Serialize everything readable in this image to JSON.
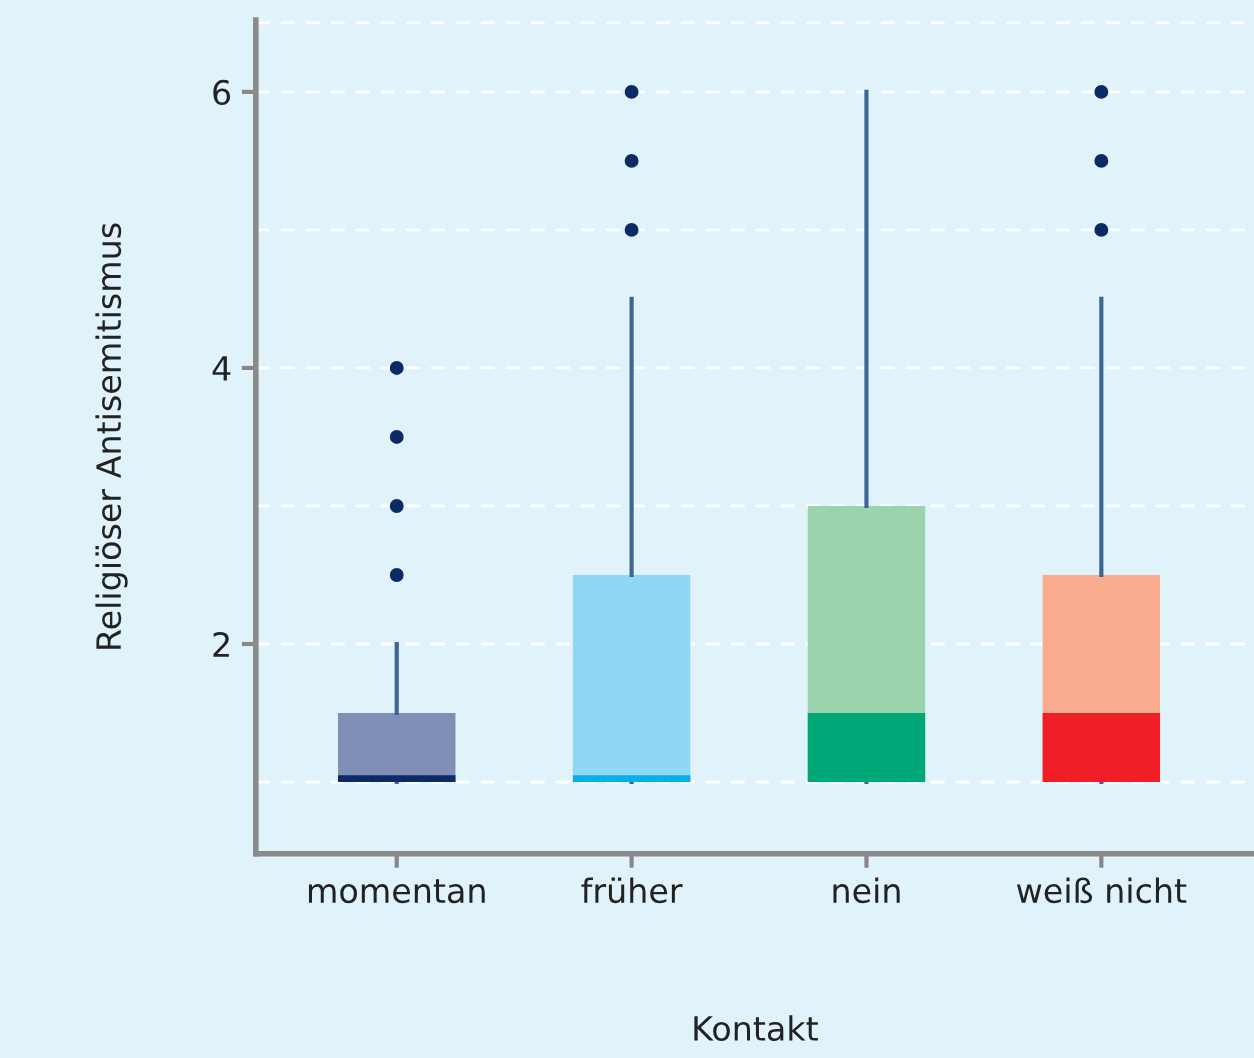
{
  "chart_data": {
    "type": "box",
    "xlabel": "Kontakt",
    "ylabel": "Religiöser Antisemitismus",
    "categories": [
      "momentan",
      "früher",
      "nein",
      "weiß nicht"
    ],
    "boxes": [
      {
        "low": 1,
        "q1": 1,
        "median": 1.05,
        "q3": 1.5,
        "high": 2,
        "outliers": [
          2.5,
          3,
          3.5,
          4
        ]
      },
      {
        "low": 1,
        "q1": 1,
        "median": 1.05,
        "q3": 2.5,
        "high": 4.5,
        "outliers": [
          5,
          5.5,
          6
        ]
      },
      {
        "low": 1,
        "q1": 1,
        "median": 1.5,
        "q3": 3,
        "high": 6
      },
      {
        "low": 1,
        "q1": 1,
        "median": 1.5,
        "q3": 2.5,
        "high": 4.5,
        "outliers": [
          5,
          5.5,
          6
        ]
      }
    ],
    "colors": [
      [
        "#7f8fb6",
        "#0b2a66"
      ],
      [
        "#8fd8f5",
        "#0aaee9"
      ],
      [
        "#9bd3ad",
        "#00a878"
      ],
      [
        "#f8ab8e",
        "#ee1f27"
      ]
    ],
    "ylim": [
      0.48,
      6.52
    ],
    "yticks": [
      {
        "value": 1,
        "label": null
      },
      2,
      {
        "value": 3,
        "label": null
      },
      4,
      {
        "value": 5,
        "label": null
      },
      6,
      {
        "value": 6.5,
        "label": null
      }
    ],
    "grid": "y"
  }
}
